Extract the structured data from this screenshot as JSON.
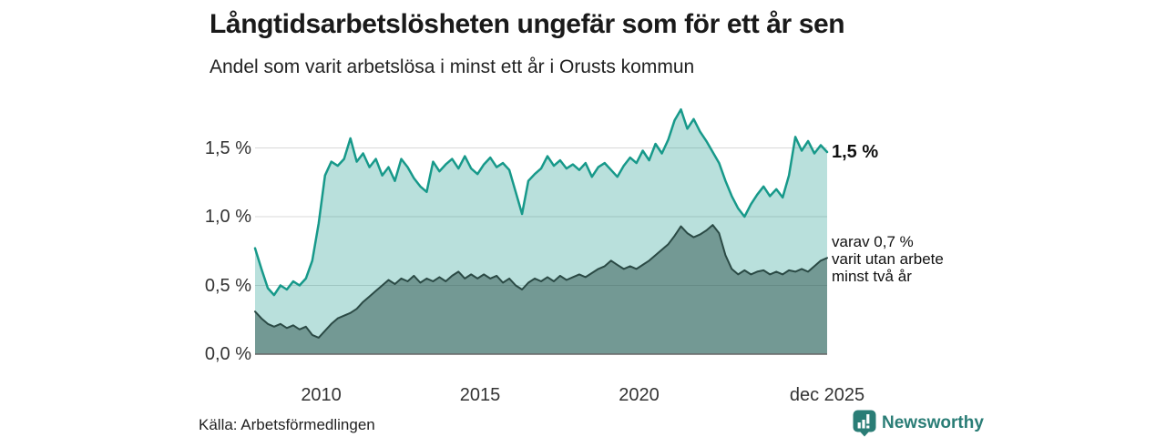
{
  "header": {
    "title": "Långtidsarbetslösheten ungefär som för ett år sen",
    "subtitle": "Andel som varit arbetslösa i minst ett år i Orusts kommun"
  },
  "chart_data": {
    "type": "area",
    "title": "Långtidsarbetslösheten ungefär som för ett år sen",
    "subtitle": "Andel som varit arbetslösa i minst ett år i Orusts kommun",
    "x_unit": "decimal_year",
    "x_start": 2007.92,
    "x_step": 0.2,
    "xlim": [
      2007.92,
      2025.92
    ],
    "ylim": [
      0,
      1.9
    ],
    "grid": "horizontal",
    "x_ticks": [
      {
        "label": "2010",
        "year": 2010
      },
      {
        "label": "2015",
        "year": 2015
      },
      {
        "label": "2020",
        "year": 2020
      },
      {
        "label": "dec 2025",
        "year": 2025.92
      }
    ],
    "y_ticks": [
      {
        "label": "0,0 %",
        "value": 0
      },
      {
        "label": "0,5 %",
        "value": 0.5
      },
      {
        "label": "1,0 %",
        "value": 1.0
      },
      {
        "label": "1,5 %",
        "value": 1.5
      }
    ],
    "series": [
      {
        "name": "Andel som varit arbetslösa i minst ett år",
        "line_color": "#17998a",
        "fill_color": "rgba(23,153,138,0.30)",
        "line_width": 2.5,
        "latest_value_pct": 1.5,
        "values": [
          0.77,
          0.62,
          0.48,
          0.43,
          0.5,
          0.47,
          0.53,
          0.5,
          0.55,
          0.68,
          0.95,
          1.3,
          1.4,
          1.37,
          1.42,
          1.57,
          1.4,
          1.46,
          1.36,
          1.42,
          1.3,
          1.36,
          1.26,
          1.42,
          1.36,
          1.28,
          1.22,
          1.18,
          1.4,
          1.33,
          1.38,
          1.42,
          1.35,
          1.44,
          1.35,
          1.31,
          1.38,
          1.43,
          1.36,
          1.39,
          1.34,
          1.18,
          1.02,
          1.26,
          1.31,
          1.35,
          1.44,
          1.37,
          1.41,
          1.35,
          1.38,
          1.34,
          1.39,
          1.29,
          1.36,
          1.39,
          1.34,
          1.29,
          1.37,
          1.43,
          1.39,
          1.48,
          1.41,
          1.53,
          1.46,
          1.56,
          1.7,
          1.78,
          1.64,
          1.71,
          1.62,
          1.55,
          1.47,
          1.39,
          1.26,
          1.15,
          1.06,
          1.0,
          1.09,
          1.16,
          1.22,
          1.15,
          1.2,
          1.14,
          1.3,
          1.58,
          1.48,
          1.55,
          1.46,
          1.52,
          1.47
        ]
      },
      {
        "name": "varav varit utan arbete minst två år",
        "line_color": "#2b4a45",
        "fill_color": "rgba(45,82,76,0.50)",
        "line_width": 2,
        "latest_value_pct": 0.7,
        "values": [
          0.31,
          0.26,
          0.22,
          0.2,
          0.22,
          0.19,
          0.21,
          0.18,
          0.2,
          0.14,
          0.12,
          0.17,
          0.22,
          0.26,
          0.28,
          0.3,
          0.33,
          0.38,
          0.42,
          0.46,
          0.5,
          0.54,
          0.51,
          0.55,
          0.53,
          0.57,
          0.52,
          0.55,
          0.53,
          0.56,
          0.53,
          0.57,
          0.6,
          0.55,
          0.58,
          0.55,
          0.58,
          0.55,
          0.57,
          0.52,
          0.55,
          0.5,
          0.47,
          0.52,
          0.55,
          0.53,
          0.56,
          0.53,
          0.57,
          0.54,
          0.56,
          0.58,
          0.56,
          0.59,
          0.62,
          0.64,
          0.68,
          0.65,
          0.62,
          0.64,
          0.62,
          0.65,
          0.68,
          0.72,
          0.76,
          0.8,
          0.86,
          0.93,
          0.88,
          0.85,
          0.87,
          0.9,
          0.94,
          0.88,
          0.72,
          0.62,
          0.58,
          0.61,
          0.58,
          0.6,
          0.61,
          0.58,
          0.6,
          0.58,
          0.61,
          0.6,
          0.62,
          0.6,
          0.64,
          0.68,
          0.7
        ]
      }
    ],
    "annotations": {
      "latest_total": "1,5 %",
      "latest_two_years_lines": [
        "varav 0,7 %",
        "varit utan arbete",
        "minst två år"
      ]
    },
    "legend": "annotations-at-line-end"
  },
  "footer": {
    "source": "Källa: Arbetsförmedlingen",
    "brand": "Newsworthy"
  },
  "colors": {
    "accent_teal": "#17998a",
    "dark_series": "#2b4a45",
    "brand_teal": "#2a7d76",
    "gridline": "#d9d9d9",
    "axis_text": "#333333"
  }
}
